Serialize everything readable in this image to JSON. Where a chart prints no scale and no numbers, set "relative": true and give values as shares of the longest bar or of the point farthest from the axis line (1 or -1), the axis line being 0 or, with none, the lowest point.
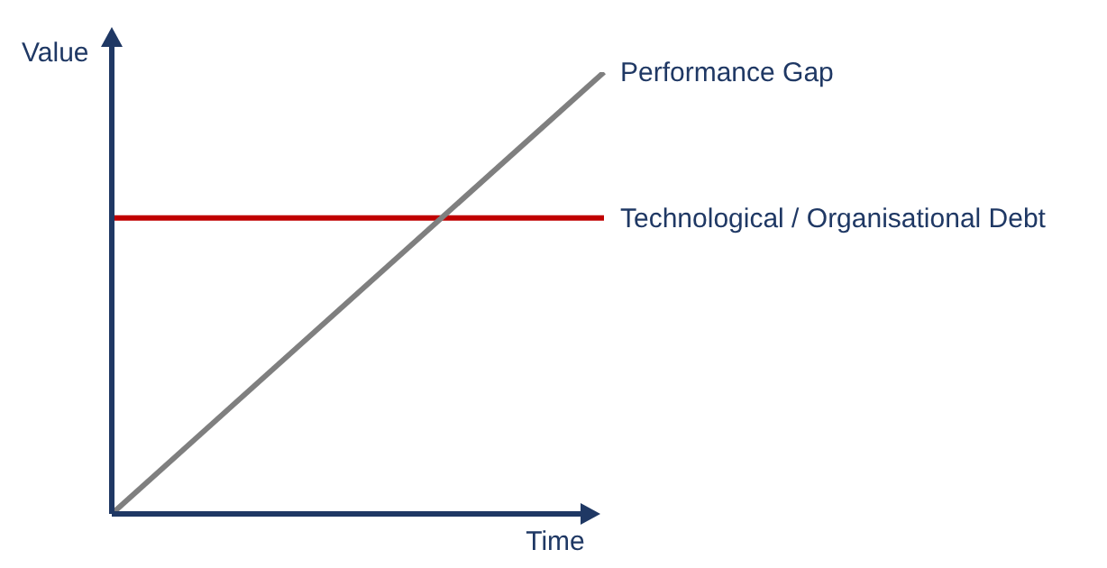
{
  "chart_data": {
    "type": "line",
    "relative": true,
    "xlabel": "Time",
    "ylabel": "Value",
    "categories": [
      null,
      null
    ],
    "series": [
      {
        "name": "Performance Gap",
        "color": "#7f7f7f",
        "values": [
          0,
          1
        ]
      },
      {
        "name": "Technological / Organisational Debt",
        "color": "#c00000",
        "values": [
          0.67,
          0.67
        ]
      }
    ]
  }
}
